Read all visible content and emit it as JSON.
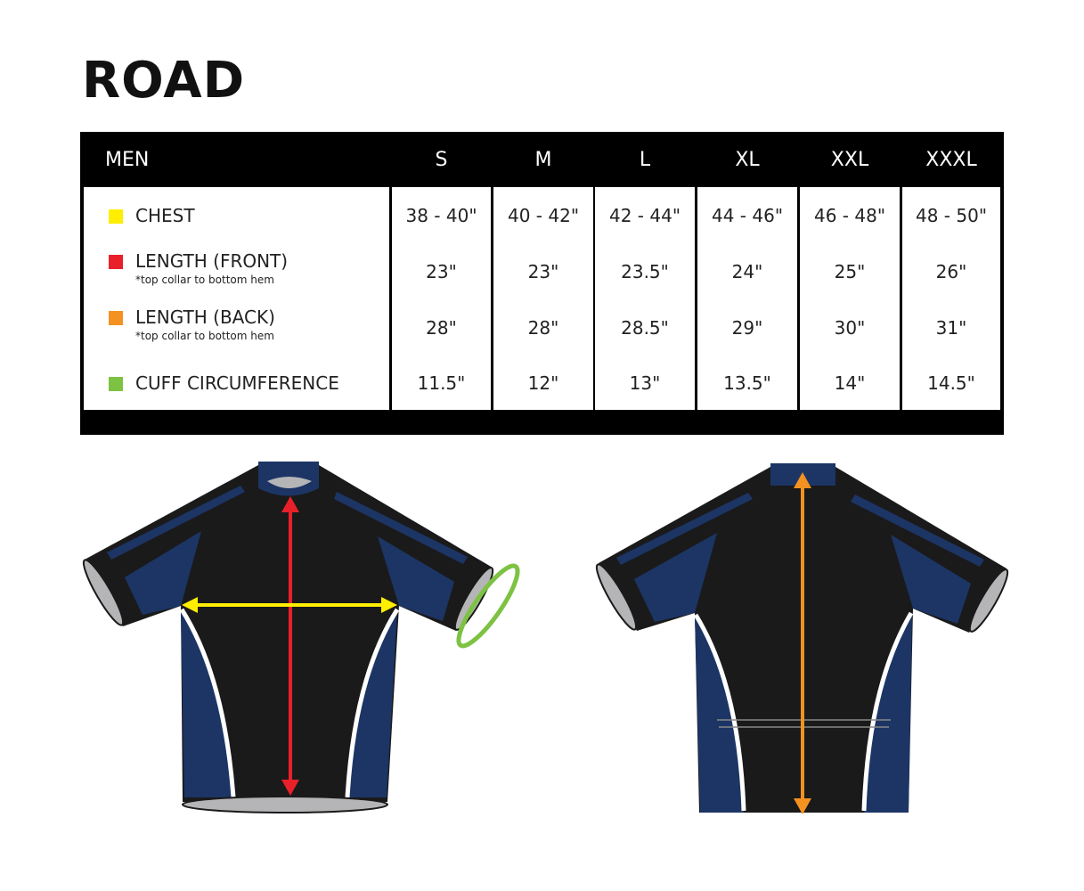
{
  "title": "ROAD",
  "table": {
    "header": "MEN",
    "sizes": [
      "S",
      "M",
      "L",
      "XL",
      "XXL",
      "XXXL"
    ],
    "rows": [
      {
        "label": "CHEST",
        "note": "",
        "color": "#ffee00",
        "values": [
          "38 - 40\"",
          "40 - 42\"",
          "42 - 44\"",
          "44 - 46\"",
          "46 - 48\"",
          "48 - 50\""
        ]
      },
      {
        "label": "LENGTH (FRONT)",
        "note": "*top collar to bottom hem",
        "color": "#e8202a",
        "values": [
          "23\"",
          "23\"",
          "23.5\"",
          "24\"",
          "25\"",
          "26\""
        ]
      },
      {
        "label": "LENGTH (BACK)",
        "note": "*top collar to bottom hem",
        "color": "#f39220",
        "values": [
          "28\"",
          "28\"",
          "28.5\"",
          "29\"",
          "30\"",
          "31\""
        ]
      },
      {
        "label": "CUFF CIRCUMFERENCE",
        "note": "",
        "color": "#7dc242",
        "values": [
          "11.5\"",
          "12\"",
          "13\"",
          "13.5\"",
          "14\"",
          "14.5\""
        ]
      }
    ]
  },
  "colors": {
    "navy": "#1c3565",
    "black": "#1a1a1a",
    "cuff_grey": "#b5b5b8"
  }
}
